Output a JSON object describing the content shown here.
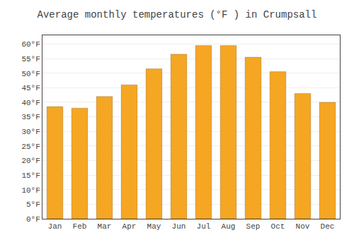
{
  "chart_data": {
    "type": "bar",
    "title": "Average monthly temperatures (°F ) in Crumpsall",
    "categories": [
      "Jan",
      "Feb",
      "Mar",
      "Apr",
      "May",
      "Jun",
      "Jul",
      "Aug",
      "Sep",
      "Oct",
      "Nov",
      "Dec"
    ],
    "values": [
      38.5,
      38.0,
      42.0,
      46.0,
      51.5,
      56.5,
      59.5,
      59.5,
      55.5,
      50.5,
      43.0,
      40.0
    ],
    "color": "#F5A623",
    "ylim": [
      0,
      63
    ],
    "yticks": [
      {
        "value": 0,
        "label": "0°F"
      },
      {
        "value": 5,
        "label": "5°F"
      },
      {
        "value": 10,
        "label": "10°F"
      },
      {
        "value": 15,
        "label": "15°F"
      },
      {
        "value": 20,
        "label": "20°F"
      },
      {
        "value": 25,
        "label": "25°F"
      },
      {
        "value": 30,
        "label": "30°F"
      },
      {
        "value": 35,
        "label": "35°F"
      },
      {
        "value": 40,
        "label": "40°F"
      },
      {
        "value": 45,
        "label": "45°F"
      },
      {
        "value": 50,
        "label": "50°F"
      },
      {
        "value": 55,
        "label": "55°F"
      },
      {
        "value": 60,
        "label": "60°F"
      }
    ],
    "grid": true
  }
}
